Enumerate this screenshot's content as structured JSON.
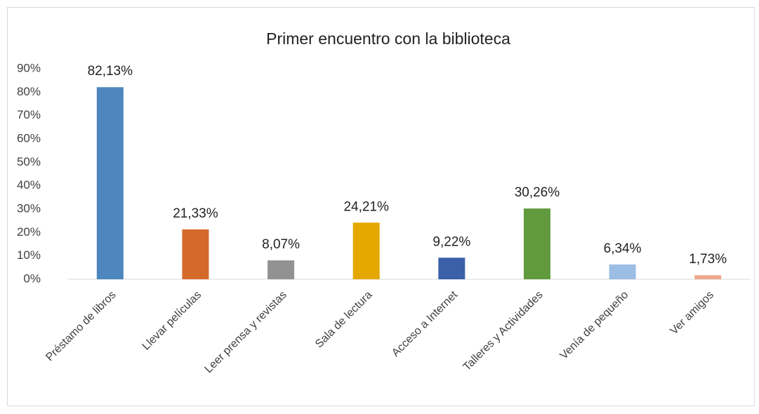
{
  "chart_data": {
    "type": "bar",
    "title": "Primer encuentro con la biblioteca",
    "categories": [
      "Préstamo de libros",
      "Llevar películas",
      "Leer prensa y revistas",
      "Sala de lectura",
      "Acceso a Internet",
      "Talleres y Actividades",
      "Venía de pequeño",
      "Ver amigos"
    ],
    "values": [
      82.13,
      21.33,
      8.07,
      24.21,
      9.22,
      30.26,
      6.34,
      1.73
    ],
    "value_labels": [
      "82,13%",
      "21,33%",
      "8,07%",
      "24,21%",
      "9,22%",
      "30,26%",
      "6,34%",
      "1,73%"
    ],
    "colors": [
      "#4e86bf",
      "#d5692b",
      "#929292",
      "#e4a800",
      "#3b60a9",
      "#619a3d",
      "#9dbee4",
      "#efa78a"
    ],
    "ylim": [
      0,
      90
    ],
    "yticks": [
      {
        "value": 0,
        "label": "0%"
      },
      {
        "value": 10,
        "label": "10%"
      },
      {
        "value": 20,
        "label": "20%"
      },
      {
        "value": 30,
        "label": "30%"
      },
      {
        "value": 40,
        "label": "40%"
      },
      {
        "value": 50,
        "label": "50%"
      },
      {
        "value": 60,
        "label": "60%"
      },
      {
        "value": 70,
        "label": "70%"
      },
      {
        "value": 80,
        "label": "80%"
      },
      {
        "value": 90,
        "label": "90%"
      }
    ],
    "grid": false
  }
}
